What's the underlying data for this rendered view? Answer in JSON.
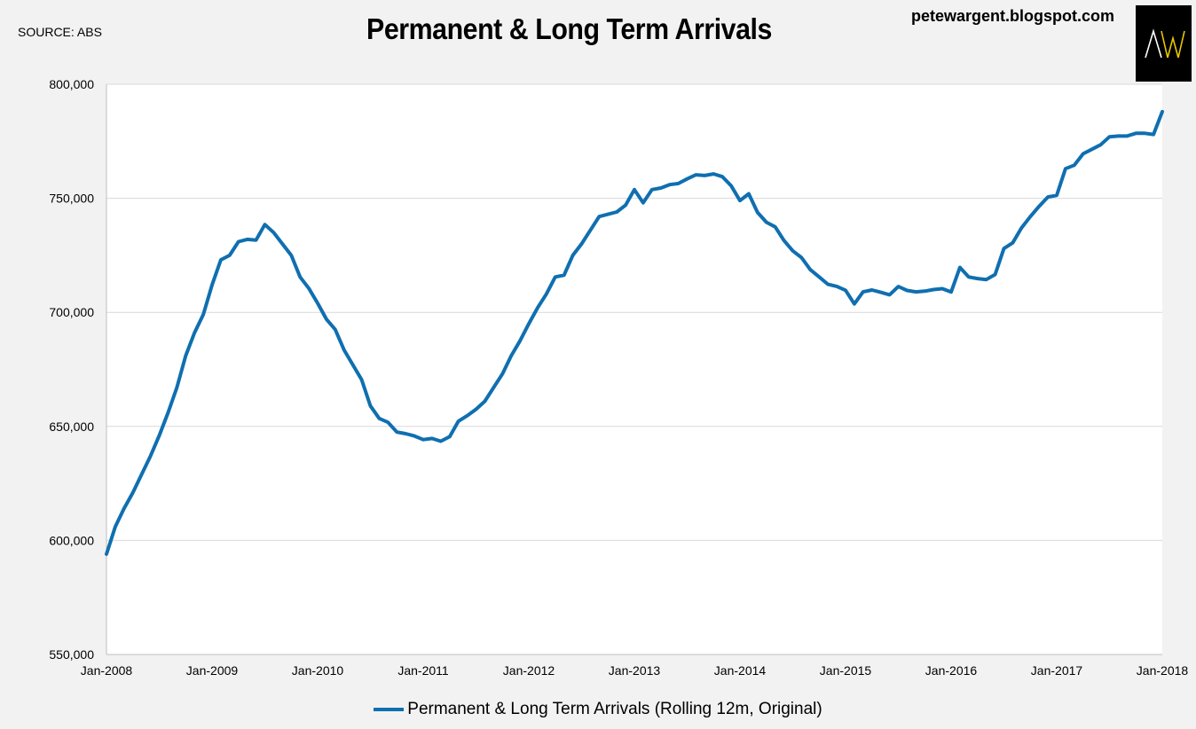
{
  "header": {
    "source": "SOURCE: ABS",
    "title": "Permanent & Long Term Arrivals",
    "blog": "petewargent.blogspot.com",
    "logo_text": "AW"
  },
  "colors": {
    "line": "#0f6fb0",
    "background": "#f2f2f2",
    "plot_background": "#ffffff",
    "grid": "#d9d9d9",
    "logo_bg": "#000000",
    "logo_a": "#ffffff",
    "logo_w": "#e8c800"
  },
  "chart_data": {
    "type": "line",
    "title": "Permanent & Long Term Arrivals",
    "xlabel": "",
    "ylabel": "",
    "ylim": [
      550000,
      800000
    ],
    "y_ticks": [
      550000,
      600000,
      650000,
      700000,
      750000,
      800000
    ],
    "y_tick_labels": [
      "550,000",
      "600,000",
      "650,000",
      "700,000",
      "750,000",
      "800,000"
    ],
    "x_tick_labels": [
      "Jan-2008",
      "Jan-2009",
      "Jan-2010",
      "Jan-2011",
      "Jan-2012",
      "Jan-2013",
      "Jan-2014",
      "Jan-2015",
      "Jan-2016",
      "Jan-2017",
      "Jan-2018"
    ],
    "x_tick_index": [
      0,
      12,
      24,
      36,
      48,
      60,
      72,
      84,
      96,
      108,
      120
    ],
    "x_start": "Jan-2008",
    "x_end": "Jan-2018",
    "grid": true,
    "legend_position": "bottom",
    "series": [
      {
        "name": "Permanent & Long Term Arrivals (Rolling 12m, Original)",
        "values": [
          594000,
          606000,
          614000,
          621000,
          629000,
          637000,
          646000,
          656000,
          667000,
          681000,
          691000,
          699000,
          712000,
          723000,
          725000,
          731000,
          732000,
          731700,
          738500,
          735000,
          730000,
          725000,
          715500,
          710500,
          704000,
          697000,
          692500,
          683500,
          677000,
          670500,
          659000,
          653500,
          651800,
          647500,
          646800,
          645800,
          644200,
          644700,
          643500,
          645500,
          652300,
          654700,
          657500,
          661000,
          667000,
          673000,
          681000,
          687500,
          695000,
          702000,
          708000,
          715500,
          716300,
          725000,
          730000,
          736000,
          742000,
          743000,
          744000,
          747000,
          753800,
          748000,
          753800,
          754500,
          756000,
          756500,
          758500,
          760300,
          760000,
          760700,
          759500,
          755500,
          749000,
          752000,
          743800,
          739500,
          737500,
          731500,
          727000,
          724000,
          718700,
          715500,
          712300,
          711400,
          709700,
          703700,
          709000,
          709800,
          708800,
          707700,
          711300,
          709600,
          709000,
          709300,
          710000,
          710400,
          708900,
          719700,
          715500,
          714800,
          714400,
          716600,
          728000,
          730500,
          737000,
          742000,
          746500,
          750600,
          751300,
          763000,
          764500,
          769500,
          771500,
          773500,
          777000,
          777300,
          777300,
          778500,
          778500,
          778000,
          788000
        ]
      }
    ]
  }
}
